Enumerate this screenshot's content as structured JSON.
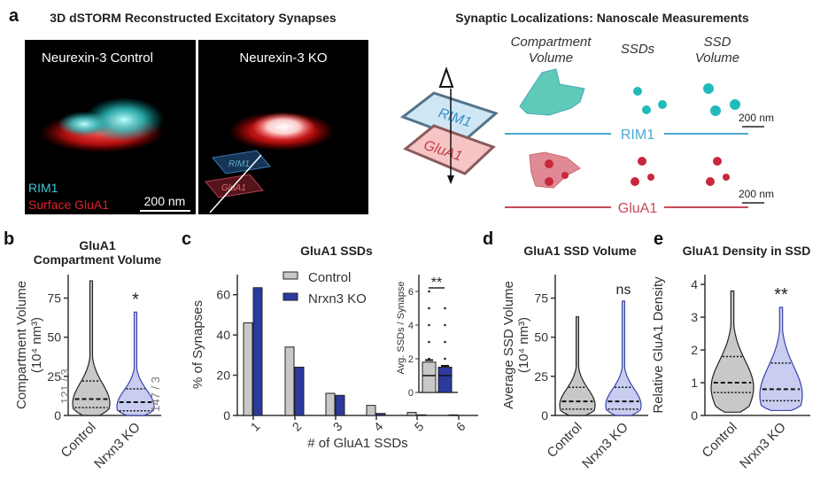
{
  "panel_a": {
    "label": "a",
    "title": "3D dSTORM Reconstructed Excitatory Synapses",
    "image_left_label": "Neurexin-3 Control",
    "image_right_label": "Neurexin-3 KO",
    "legend_rim1": "RIM1",
    "legend_glua1": "Surface GluA1",
    "scale_bar": "200 nm",
    "plane_rim1": "RIM1",
    "plane_glua1": "GluA1",
    "colors": {
      "rim1": "#3fc6d6",
      "glua1": "#e0202a"
    }
  },
  "panel_measure": {
    "title": "Synaptic Localizations: Nanoscale Measurements",
    "col1_line1": "Compartment",
    "col1_line2": "Volume",
    "col2": "SSDs",
    "col3_line1": "SSD",
    "col3_line2": "Volume",
    "plane_rim1": "RIM1",
    "plane_glua1": "GluA1",
    "row_rim1": "RIM1",
    "row_glua1": "GluA1",
    "scale_bar_1": "200 nm",
    "scale_bar_2": "200 nm",
    "colors": {
      "rim1": "#4aa8cf",
      "rim1_fill": "#4fc4b8",
      "glua1": "#c9485a",
      "glua1_fill": "#c8283c"
    }
  },
  "chart_data": [
    {
      "panel": "b",
      "type": "violin",
      "title_line1": "GluA1",
      "title_line2": "Compartment Volume",
      "ylabel_line1": "Compartment Volume",
      "ylabel_line2": "(10⁴ nm³)",
      "ylim": [
        0,
        90
      ],
      "yticks": [
        0,
        25,
        50,
        75
      ],
      "categories": [
        "Control",
        "Nrxn3 KO"
      ],
      "series": [
        {
          "category": "Control",
          "min": 0,
          "q1": 5,
          "median": 10.5,
          "q3": 22,
          "max": 86,
          "color": "#c8c8c8",
          "edge": "#222222",
          "n_label": "121 / 3"
        },
        {
          "category": "Nrxn3 KO",
          "min": 0,
          "q1": 3,
          "median": 8.5,
          "q3": 17,
          "max": 66,
          "color": "#c9cdef",
          "edge": "#3a44a8",
          "n_label": "147 / 3"
        }
      ],
      "significance": "*"
    },
    {
      "panel": "c",
      "type": "bar",
      "title": "GluA1 SSDs",
      "xlabel": "# of GluA1 SSDs",
      "ylabel": "% of Synapses",
      "ylim": [
        0,
        70
      ],
      "yticks": [
        0,
        20,
        40,
        60
      ],
      "categories": [
        "1",
        "2",
        "3",
        "4",
        "5",
        "6"
      ],
      "series": [
        {
          "name": "Control",
          "color": "#c8c8c8",
          "values": [
            46,
            34,
            11,
            5,
            1.5,
            0.3
          ]
        },
        {
          "name": "Nrxn3 KO",
          "color": "#2c3a9e",
          "values": [
            63.5,
            24,
            10,
            1,
            0.3,
            0
          ]
        }
      ],
      "legend": "top-center",
      "inset": {
        "type": "bar",
        "ylabel": "Avg. SSDs / Synapse",
        "ylim": [
          0,
          7
        ],
        "yticks": [
          0,
          2,
          4,
          6
        ],
        "values": [
          {
            "name": "Control",
            "mean": 1.8,
            "sem": 0.12,
            "median": 1
          },
          {
            "name": "Nrxn3 KO",
            "mean": 1.5,
            "sem": 0.08,
            "median": 1
          }
        ],
        "points": [
          [
            6,
            5,
            4,
            3,
            2
          ],
          [
            5,
            4,
            3,
            2
          ]
        ],
        "significance": "**"
      }
    },
    {
      "panel": "d",
      "type": "violin",
      "title": "GluA1 SSD Volume",
      "ylabel_line1": "Average SSD Volume",
      "ylabel_line2": "(10⁴ nm³)",
      "ylim": [
        0,
        90
      ],
      "yticks": [
        0,
        25,
        50,
        75
      ],
      "categories": [
        "Control",
        "Nrxn3 KO"
      ],
      "series": [
        {
          "category": "Control",
          "min": 0,
          "q1": 4,
          "median": 9,
          "q3": 18,
          "max": 63,
          "color": "#c8c8c8",
          "edge": "#222222"
        },
        {
          "category": "Nrxn3 KO",
          "min": 0,
          "q1": 4,
          "median": 9,
          "q3": 18,
          "max": 73,
          "color": "#c9cdef",
          "edge": "#3a44a8"
        }
      ],
      "significance": "ns"
    },
    {
      "panel": "e",
      "type": "violin",
      "title": "GluA1 Density in SSD",
      "ylabel_line1": "Relative GluA1 Density",
      "ylim": [
        0,
        4.3
      ],
      "yticks": [
        0,
        1,
        2,
        3,
        4
      ],
      "categories": [
        "Control",
        "Nrxn3 KO"
      ],
      "series": [
        {
          "category": "Control",
          "min": 0.1,
          "q1": 0.7,
          "median": 1.0,
          "q3": 1.8,
          "max": 3.8,
          "color": "#c8c8c8",
          "edge": "#222222"
        },
        {
          "category": "Nrxn3 KO",
          "min": 0.15,
          "q1": 0.45,
          "median": 0.8,
          "q3": 1.6,
          "max": 3.3,
          "color": "#c9cdef",
          "edge": "#3a44a8"
        }
      ],
      "significance": "**"
    }
  ]
}
